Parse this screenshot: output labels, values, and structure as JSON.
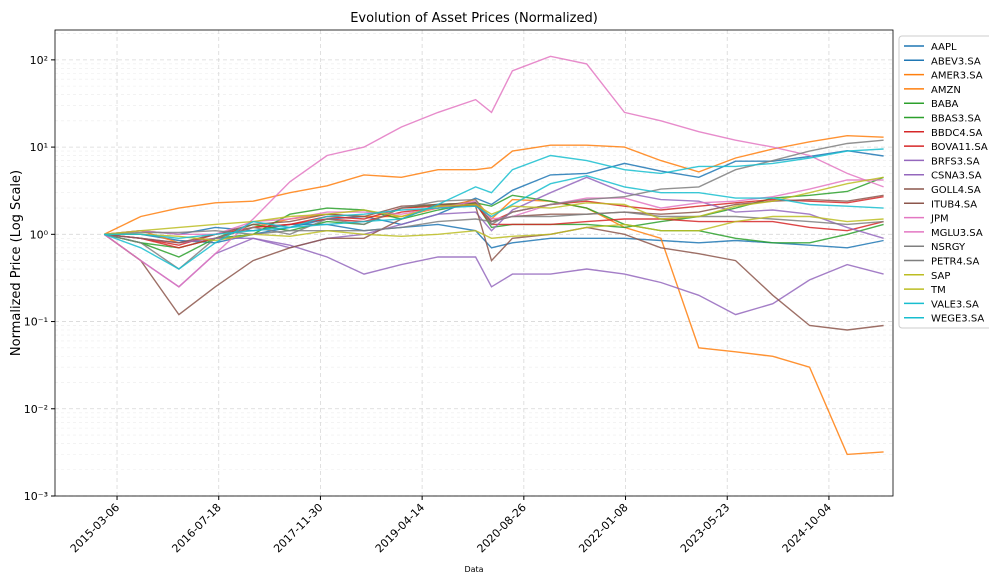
{
  "chart_data": {
    "type": "line",
    "title": "Evolution of Asset Prices (Normalized)",
    "x_label": "Data",
    "y_label": "Normalized Price (Log Scale)",
    "log_scale_y": true,
    "grid": true,
    "legend": "outside-right",
    "xlim": [
      "2014-05-05",
      "2025-08-15"
    ],
    "xticks": [
      "2015-03-06",
      "2016-07-18",
      "2017-11-30",
      "2019-04-14",
      "2020-08-26",
      "2022-01-08",
      "2023-05-23",
      "2024-10-04"
    ],
    "ylim": [
      0.001,
      220
    ],
    "yticks": [
      {
        "value": 0.001,
        "label": "10⁻³"
      },
      {
        "value": 0.01,
        "label": "10⁻²"
      },
      {
        "value": 0.1,
        "label": "10⁻¹"
      },
      {
        "value": 1,
        "label": "10⁰"
      },
      {
        "value": 10,
        "label": "10¹"
      },
      {
        "value": 100,
        "label": "10²"
      }
    ],
    "x": [
      "2015-01-02",
      "2015-07-01",
      "2016-01-04",
      "2016-07-01",
      "2017-01-03",
      "2017-07-03",
      "2018-01-02",
      "2018-07-02",
      "2019-01-02",
      "2019-07-01",
      "2020-01-02",
      "2020-03-20",
      "2020-07-01",
      "2021-01-04",
      "2021-07-01",
      "2022-01-03",
      "2022-07-01",
      "2023-01-03",
      "2023-07-03",
      "2024-01-02",
      "2024-07-01",
      "2025-01-02",
      "2025-06-30"
    ],
    "series": [
      {
        "name": "AAPL",
        "color": "#1f77b4",
        "values": [
          1,
          1.0,
          0.85,
          0.8,
          1.0,
          1.2,
          1.5,
          1.6,
          1.3,
          1.7,
          2.6,
          2.2,
          3.2,
          4.8,
          5.0,
          6.5,
          5.3,
          4.5,
          6.9,
          6.9,
          7.8,
          9.1,
          7.9
        ]
      },
      {
        "name": "ABEV3.SA",
        "color": "#1f77b4",
        "values": [
          1,
          1.1,
          1.0,
          1.2,
          1.1,
          1.3,
          1.3,
          1.1,
          1.2,
          1.3,
          1.1,
          0.7,
          0.8,
          0.9,
          0.9,
          0.9,
          0.85,
          0.8,
          0.85,
          0.8,
          0.75,
          0.7,
          0.85
        ]
      },
      {
        "name": "AMER3.SA",
        "color": "#ff7f0e",
        "values": [
          1,
          1.1,
          0.8,
          0.9,
          1.2,
          1.5,
          1.7,
          1.6,
          1.6,
          2.0,
          2.5,
          1.5,
          2.5,
          2.4,
          2.0,
          1.2,
          0.9,
          0.05,
          0.045,
          0.04,
          0.03,
          0.003,
          0.0032
        ]
      },
      {
        "name": "AMZN",
        "color": "#ff7f0e",
        "values": [
          1,
          1.6,
          2.0,
          2.3,
          2.4,
          3.0,
          3.6,
          4.8,
          4.5,
          5.5,
          5.5,
          5.8,
          9,
          10.5,
          10.5,
          10.0,
          7,
          5.2,
          7.5,
          9.5,
          11.5,
          13.5,
          13
        ]
      },
      {
        "name": "BABA",
        "color": "#2ca02c",
        "values": [
          1,
          0.8,
          0.7,
          0.9,
          1.0,
          1.7,
          2.0,
          1.9,
          1.5,
          1.9,
          2.3,
          2.1,
          2.8,
          2.4,
          2.0,
          1.3,
          1.1,
          1.1,
          0.9,
          0.8,
          0.8,
          1.0,
          1.3
        ]
      },
      {
        "name": "BBAS3.SA",
        "color": "#2ca02c",
        "values": [
          1,
          0.8,
          0.55,
          0.9,
          1.3,
          1.1,
          1.4,
          1.3,
          2.0,
          2.2,
          2.3,
          1.2,
          1.3,
          1.3,
          1.3,
          1.2,
          1.4,
          1.6,
          2.0,
          2.6,
          2.8,
          3.1,
          4.5
        ]
      },
      {
        "name": "BBDC4.SA",
        "color": "#d62728",
        "values": [
          1,
          0.9,
          0.7,
          0.9,
          1.2,
          1.3,
          1.6,
          1.5,
          2.0,
          2.1,
          2.2,
          1.3,
          1.3,
          1.3,
          1.4,
          1.5,
          1.5,
          1.4,
          1.4,
          1.4,
          1.2,
          1.1,
          1.4
        ]
      },
      {
        "name": "BOVA11.SA",
        "color": "#d62728",
        "values": [
          1,
          0.9,
          0.75,
          1.0,
          1.2,
          1.3,
          1.5,
          1.4,
          1.8,
          2.0,
          2.2,
          1.4,
          1.8,
          2.2,
          2.4,
          2.1,
          1.9,
          2.1,
          2.3,
          2.5,
          2.4,
          2.3,
          2.7
        ]
      },
      {
        "name": "BRFS3.SA",
        "color": "#9467bd",
        "values": [
          1,
          0.9,
          0.8,
          0.9,
          0.9,
          0.75,
          0.55,
          0.35,
          0.45,
          0.55,
          0.55,
          0.25,
          0.35,
          0.35,
          0.4,
          0.35,
          0.28,
          0.2,
          0.12,
          0.16,
          0.3,
          0.45,
          0.35
        ]
      },
      {
        "name": "CSNA3.SA",
        "color": "#9467bd",
        "values": [
          1,
          0.5,
          0.25,
          0.6,
          0.9,
          0.7,
          0.9,
          1.0,
          1.3,
          1.7,
          1.8,
          1.1,
          1.9,
          3.0,
          4.5,
          3.0,
          2.5,
          2.4,
          1.8,
          1.9,
          1.7,
          1.2,
          0.9
        ]
      },
      {
        "name": "GOLL4.SA",
        "color": "#8c564b",
        "values": [
          1,
          0.5,
          0.12,
          0.25,
          0.5,
          0.7,
          0.9,
          0.9,
          1.5,
          2.2,
          2.1,
          0.5,
          0.9,
          1.0,
          1.2,
          1.0,
          0.7,
          0.6,
          0.5,
          0.2,
          0.09,
          0.08,
          0.09
        ]
      },
      {
        "name": "ITUB4.SA",
        "color": "#8c564b",
        "values": [
          1,
          0.9,
          0.8,
          1.0,
          1.3,
          1.4,
          1.7,
          1.6,
          2.1,
          2.2,
          2.3,
          1.4,
          1.6,
          1.7,
          1.7,
          1.8,
          1.7,
          1.8,
          2.2,
          2.4,
          2.5,
          2.4,
          2.8
        ]
      },
      {
        "name": "JPM",
        "color": "#e377c2",
        "values": [
          1,
          1.1,
          1.0,
          1.0,
          1.4,
          1.5,
          1.8,
          1.8,
          1.7,
          2.0,
          2.4,
          1.5,
          1.6,
          2.2,
          2.6,
          2.6,
          2.0,
          2.3,
          2.4,
          2.7,
          3.3,
          4.2,
          4.2
        ]
      },
      {
        "name": "MGLU3.SA",
        "color": "#e377c2",
        "values": [
          1,
          0.5,
          0.25,
          0.6,
          1.5,
          4,
          8,
          10,
          17,
          25,
          35,
          25,
          75,
          110,
          90,
          25,
          20,
          15,
          12,
          10,
          8,
          5,
          3.5
        ]
      },
      {
        "name": "NSRGY",
        "color": "#7f7f7f",
        "values": [
          1,
          1.05,
          1.05,
          1.1,
          1.0,
          1.1,
          1.1,
          1.1,
          1.2,
          1.4,
          1.5,
          1.4,
          1.6,
          1.6,
          1.7,
          1.8,
          1.6,
          1.6,
          1.6,
          1.5,
          1.4,
          1.3,
          1.4
        ]
      },
      {
        "name": "PETR4.SA",
        "color": "#7f7f7f",
        "values": [
          1,
          0.8,
          0.4,
          0.9,
          1.2,
          1.0,
          1.5,
          1.3,
          2.0,
          2.4,
          2.5,
          1.3,
          1.8,
          2.2,
          2.5,
          2.7,
          3.3,
          3.5,
          5.5,
          7,
          9,
          11,
          12
        ]
      },
      {
        "name": "SAP",
        "color": "#bcbd22",
        "values": [
          1,
          1.1,
          1.2,
          1.3,
          1.4,
          1.6,
          1.7,
          1.9,
          1.6,
          2.1,
          2.2,
          1.7,
          2.1,
          2.0,
          2.3,
          2.2,
          1.5,
          1.6,
          2.1,
          2.4,
          3.0,
          3.8,
          4.5
        ]
      },
      {
        "name": "TM",
        "color": "#bcbd22",
        "values": [
          1,
          1.0,
          0.95,
          0.85,
          1.0,
          0.95,
          1.1,
          1.0,
          0.95,
          1.0,
          1.1,
          0.9,
          0.95,
          1.0,
          1.2,
          1.3,
          1.1,
          1.1,
          1.4,
          1.6,
          1.6,
          1.4,
          1.5
        ]
      },
      {
        "name": "VALE3.SA",
        "color": "#17becf",
        "values": [
          1,
          0.7,
          0.4,
          0.8,
          1.4,
          1.2,
          1.6,
          1.7,
          1.9,
          2.0,
          2.1,
          1.6,
          2.2,
          3.8,
          4.7,
          3.5,
          3.0,
          3.0,
          2.6,
          2.6,
          2.2,
          2.1,
          2.0
        ]
      },
      {
        "name": "WEGE3.SA",
        "color": "#17becf",
        "values": [
          1,
          1.0,
          0.9,
          1.0,
          1.1,
          1.2,
          1.3,
          1.4,
          1.5,
          2.2,
          3.5,
          3.0,
          5.5,
          8,
          7,
          5.5,
          5,
          6,
          6,
          6.5,
          7.5,
          9,
          9.5
        ]
      }
    ]
  }
}
